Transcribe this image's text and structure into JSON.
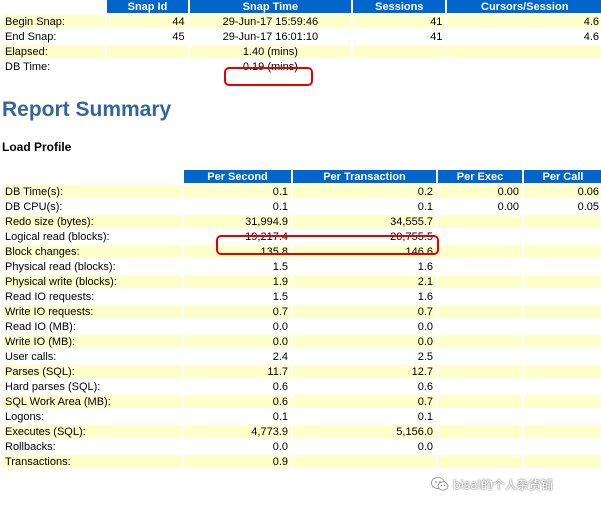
{
  "snap": {
    "headers": [
      "",
      "Snap Id",
      "Snap Time",
      "Sessions",
      "Cursors/Session"
    ],
    "rows": [
      {
        "label": "Begin Snap:",
        "snap_id": "44",
        "snap_time": "29-Jun-17 15:59:46",
        "sessions": "41",
        "cursors": "4.6"
      },
      {
        "label": "End Snap:",
        "snap_id": "45",
        "snap_time": "29-Jun-17 16:01:10",
        "sessions": "41",
        "cursors": "4.6"
      },
      {
        "label": "Elapsed:",
        "snap_id": "",
        "snap_time": "1.40 (mins)",
        "sessions": "",
        "cursors": ""
      },
      {
        "label": "DB Time:",
        "snap_id": "",
        "snap_time": "0.19 (mins)",
        "sessions": "",
        "cursors": ""
      }
    ]
  },
  "report_summary_title": "Report Summary",
  "load_profile": {
    "title": "Load Profile",
    "headers": [
      "",
      "Per Second",
      "Per Transaction",
      "Per Exec",
      "Per Call"
    ],
    "rows": [
      {
        "label": "DB Time(s):",
        "per_second": "0.1",
        "per_transaction": "0.2",
        "per_exec": "0.00",
        "per_call": "0.06"
      },
      {
        "label": "DB CPU(s):",
        "per_second": "0.1",
        "per_transaction": "0.1",
        "per_exec": "0.00",
        "per_call": "0.05"
      },
      {
        "label": "Redo size (bytes):",
        "per_second": "31,994.9",
        "per_transaction": "34,555.7",
        "per_exec": "",
        "per_call": ""
      },
      {
        "label": "Logical read (blocks):",
        "per_second": "19,217.4",
        "per_transaction": "20,755.5",
        "per_exec": "",
        "per_call": ""
      },
      {
        "label": "Block changes:",
        "per_second": "135.8",
        "per_transaction": "146.6",
        "per_exec": "",
        "per_call": ""
      },
      {
        "label": "Physical read (blocks):",
        "per_second": "1.5",
        "per_transaction": "1.6",
        "per_exec": "",
        "per_call": ""
      },
      {
        "label": "Physical write (blocks):",
        "per_second": "1.9",
        "per_transaction": "2.1",
        "per_exec": "",
        "per_call": ""
      },
      {
        "label": "Read IO requests:",
        "per_second": "1.5",
        "per_transaction": "1.6",
        "per_exec": "",
        "per_call": ""
      },
      {
        "label": "Write IO requests:",
        "per_second": "0.7",
        "per_transaction": "0.7",
        "per_exec": "",
        "per_call": ""
      },
      {
        "label": "Read IO (MB):",
        "per_second": "0.0",
        "per_transaction": "0.0",
        "per_exec": "",
        "per_call": ""
      },
      {
        "label": "Write IO (MB):",
        "per_second": "0.0",
        "per_transaction": "0.0",
        "per_exec": "",
        "per_call": ""
      },
      {
        "label": "User calls:",
        "per_second": "2.4",
        "per_transaction": "2.5",
        "per_exec": "",
        "per_call": ""
      },
      {
        "label": "Parses (SQL):",
        "per_second": "11.7",
        "per_transaction": "12.7",
        "per_exec": "",
        "per_call": ""
      },
      {
        "label": "Hard parses (SQL):",
        "per_second": "0.6",
        "per_transaction": "0.6",
        "per_exec": "",
        "per_call": ""
      },
      {
        "label": "SQL Work Area (MB):",
        "per_second": "0.6",
        "per_transaction": "0.7",
        "per_exec": "",
        "per_call": ""
      },
      {
        "label": "Logons:",
        "per_second": "0.1",
        "per_transaction": "0.1",
        "per_exec": "",
        "per_call": ""
      },
      {
        "label": "Executes (SQL):",
        "per_second": "4,773.9",
        "per_transaction": "5,156.0",
        "per_exec": "",
        "per_call": ""
      },
      {
        "label": "Rollbacks:",
        "per_second": "0.0",
        "per_transaction": "0.0",
        "per_exec": "",
        "per_call": ""
      },
      {
        "label": "Transactions:",
        "per_second": "0.9",
        "per_transaction": "",
        "per_exec": "",
        "per_call": ""
      }
    ]
  },
  "watermark": {
    "icon": "wechat-icon",
    "text": "bisal的个人杂货铺"
  },
  "colors": {
    "header_bg": "#0066cc",
    "odd_row_bg": "#ffffcc",
    "title": "#336699",
    "highlight": "#e60000"
  }
}
